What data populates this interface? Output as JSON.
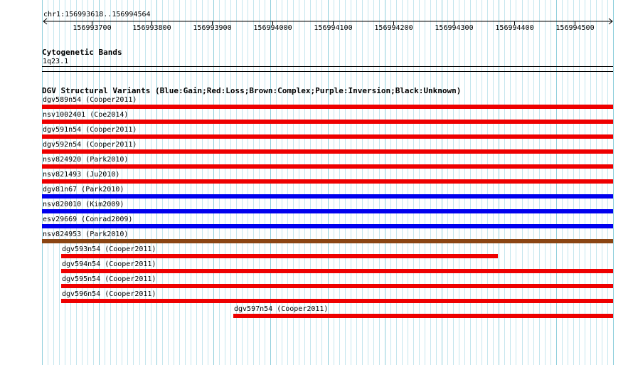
{
  "ruler": {
    "location": "chr1:156993618..156994564",
    "start": 156993618,
    "end": 156994564,
    "ticks": [
      156993700,
      156993800,
      156993900,
      156994000,
      156994100,
      156994200,
      156994300,
      156994400,
      156994500
    ]
  },
  "cytoband_track": {
    "title": "Cytogenetic Bands",
    "band": "1q23.1"
  },
  "dgv_track": {
    "title": "DGV Structural Variants (Blue:Gain;Red:Loss;Brown:Complex;Purple:Inversion;Black:Unknown)",
    "colors": {
      "gain": "#0000ee",
      "loss": "#ee0000",
      "complex": "#8b4513"
    },
    "features": [
      {
        "label": "dgv589n54 (Cooper2011)",
        "type": "loss",
        "start": 156993618,
        "end": 156994564
      },
      {
        "label": "nsv1002401 (Coe2014)",
        "type": "loss",
        "start": 156993618,
        "end": 156994564
      },
      {
        "label": "dgv591n54 (Cooper2011)",
        "type": "loss",
        "start": 156993618,
        "end": 156994564
      },
      {
        "label": "dgv592n54 (Cooper2011)",
        "type": "loss",
        "start": 156993618,
        "end": 156994564
      },
      {
        "label": "nsv824920 (Park2010)",
        "type": "loss",
        "start": 156993618,
        "end": 156994564
      },
      {
        "label": "nsv821493 (Ju2010)",
        "type": "loss",
        "start": 156993618,
        "end": 156994564
      },
      {
        "label": "dgv81n67 (Park2010)",
        "type": "gain",
        "start": 156993618,
        "end": 156994564
      },
      {
        "label": "nsv820010 (Kim2009)",
        "type": "gain",
        "start": 156993618,
        "end": 156994564
      },
      {
        "label": "esv29669 (Conrad2009)",
        "type": "gain",
        "start": 156993618,
        "end": 156994564
      },
      {
        "label": "nsv824953 (Park2010)",
        "type": "complex",
        "start": 156993618,
        "end": 156994564
      },
      {
        "label": "dgv593n54 (Cooper2011)",
        "type": "loss",
        "start": 156993650,
        "end": 156994373
      },
      {
        "label": "dgv594n54 (Cooper2011)",
        "type": "loss",
        "start": 156993650,
        "end": 156994564
      },
      {
        "label": "dgv595n54 (Cooper2011)",
        "type": "loss",
        "start": 156993650,
        "end": 156994564
      },
      {
        "label": "dgv596n54 (Cooper2011)",
        "type": "loss",
        "start": 156993650,
        "end": 156994564
      },
      {
        "label": "dgv597n54 (Cooper2011)",
        "type": "loss",
        "start": 156993935,
        "end": 156994564
      }
    ]
  }
}
